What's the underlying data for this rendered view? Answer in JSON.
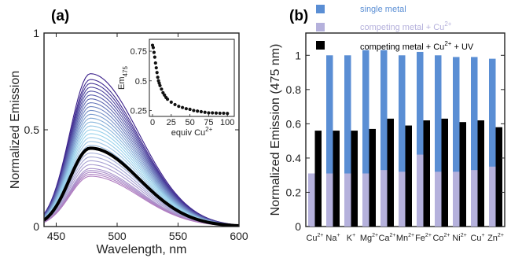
{
  "chart_data": [
    {
      "panel_label": "(a)",
      "type": "line",
      "xlabel": "Wavelength, nm",
      "ylabel": "Normalized Emission",
      "xlim": [
        440,
        600
      ],
      "ylim": [
        0,
        1
      ],
      "x_ticks": [
        450,
        500,
        550,
        600
      ],
      "y_ticks": [
        0,
        0.5,
        1
      ],
      "x_tick_labels": [
        "450",
        "500",
        "550",
        "600"
      ],
      "y_tick_labels": [
        "0",
        "0.5",
        "1"
      ],
      "peak_wavelength": 478,
      "spectra_peak_heights": [
        0.79,
        0.76,
        0.74,
        0.72,
        0.7,
        0.68,
        0.66,
        0.64,
        0.62,
        0.6,
        0.58,
        0.56,
        0.54,
        0.52,
        0.5,
        0.48,
        0.46,
        0.44,
        0.42,
        0.41,
        0.4,
        0.38,
        0.36,
        0.34,
        0.32,
        0.3,
        0.29,
        0.28,
        0.27,
        0.26
      ],
      "highlight_spectrum_peak": 0.405,
      "series_colors": {
        "start": "#3a1f8a",
        "middle": "#9ad6ee",
        "end": "#b07cc0",
        "highlight": "#000000"
      },
      "inset": {
        "type": "scatter",
        "xlabel": "equiv Cu",
        "xlabel_sup": "2+",
        "ylabel": "Em",
        "ylabel_sub": "475",
        "xlim": [
          0,
          105
        ],
        "ylim": [
          0.2,
          0.85
        ],
        "x_ticks": [
          0,
          25,
          50,
          75,
          100
        ],
        "y_ticks": [
          0.25,
          0.5,
          0.75
        ],
        "x_tick_labels": [
          "0",
          "25",
          "50",
          "75",
          "100"
        ],
        "y_tick_labels": [
          "0.25",
          "0.5",
          "0.75"
        ],
        "points": [
          [
            0,
            0.8
          ],
          [
            1,
            0.78
          ],
          [
            2,
            0.74
          ],
          [
            3,
            0.7
          ],
          [
            4,
            0.65
          ],
          [
            5,
            0.61
          ],
          [
            6,
            0.57
          ],
          [
            7,
            0.53
          ],
          [
            8,
            0.5
          ],
          [
            9,
            0.48
          ],
          [
            10,
            0.46
          ],
          [
            12,
            0.43
          ],
          [
            14,
            0.4
          ],
          [
            16,
            0.38
          ],
          [
            18,
            0.36
          ],
          [
            20,
            0.345
          ],
          [
            25,
            0.32
          ],
          [
            30,
            0.3
          ],
          [
            35,
            0.285
          ],
          [
            40,
            0.275
          ],
          [
            45,
            0.265
          ],
          [
            50,
            0.26
          ],
          [
            55,
            0.25
          ],
          [
            60,
            0.245
          ],
          [
            65,
            0.24
          ],
          [
            70,
            0.235
          ],
          [
            75,
            0.23
          ],
          [
            80,
            0.23
          ],
          [
            85,
            0.228
          ],
          [
            90,
            0.227
          ],
          [
            95,
            0.227
          ],
          [
            100,
            0.225
          ]
        ]
      }
    },
    {
      "panel_label": "(b)",
      "type": "bar",
      "ylabel": "Normalized Emission (475 nm)",
      "ylim": [
        0,
        1.13
      ],
      "y_ticks": [
        0,
        0.2,
        0.4,
        0.6,
        0.8,
        1
      ],
      "y_tick_labels": [
        "0",
        "0.2",
        "0.4",
        "0.6",
        "0.8",
        "1"
      ],
      "categories": [
        {
          "base": "Cu",
          "sup": "2+"
        },
        {
          "base": "Na",
          "sup": "+"
        },
        {
          "base": "K",
          "sup": "+"
        },
        {
          "base": "Mg",
          "sup": "2+"
        },
        {
          "base": "Ca",
          "sup": "2+"
        },
        {
          "base": "Mn",
          "sup": "2+"
        },
        {
          "base": "Fe",
          "sup": "2+"
        },
        {
          "base": "Co",
          "sup": "2+"
        },
        {
          "base": "Ni",
          "sup": "2+"
        },
        {
          "base": "Cu",
          "sup": "+"
        },
        {
          "base": "Zn",
          "sup": "2+"
        }
      ],
      "series": [
        {
          "name": "single metal",
          "color": "#5a8ed4",
          "values": [
            null,
            1.0,
            1.0,
            1.03,
            1.03,
            1.0,
            1.02,
            1.0,
            0.99,
            0.99,
            0.98
          ]
        },
        {
          "name": "competing metal + Cu",
          "name_sup": "2+",
          "color": "#b5b1dc",
          "values": [
            0.31,
            0.31,
            0.31,
            0.31,
            0.33,
            0.32,
            0.42,
            0.32,
            0.32,
            0.33,
            0.35
          ]
        },
        {
          "name": "competing metal + Cu",
          "name_sup": "2+",
          "name_suffix": " + UV",
          "color": "#000000",
          "values": [
            0.56,
            0.56,
            0.56,
            0.57,
            0.63,
            0.59,
            0.62,
            0.63,
            0.61,
            0.62,
            0.58
          ]
        }
      ]
    }
  ]
}
